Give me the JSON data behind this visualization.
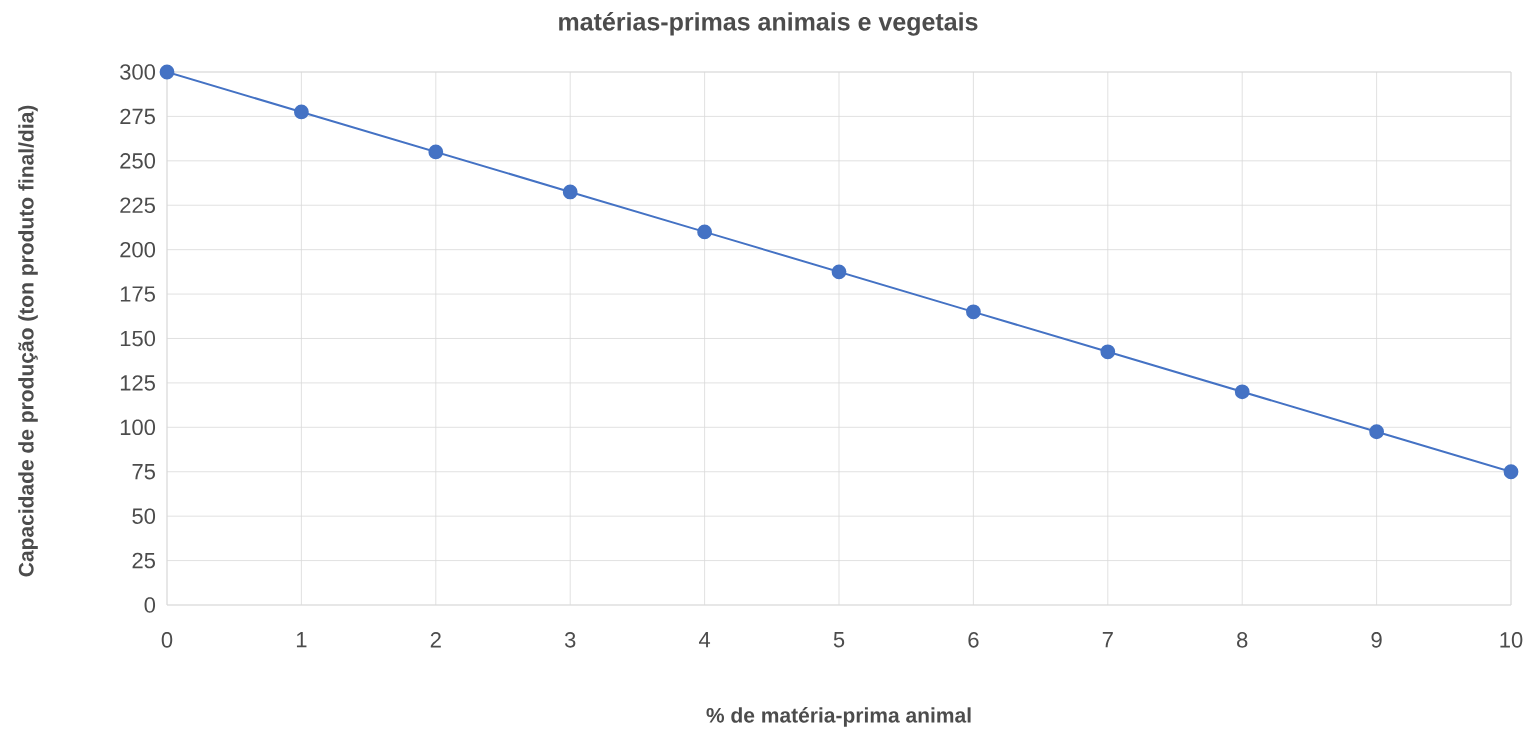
{
  "chart_data": {
    "type": "line",
    "title": "matérias-primas animais e vegetais",
    "xlabel": "% de matéria-prima animal",
    "ylabel": "Capacidade de produção (ton produto final/dia)",
    "x": [
      0,
      1,
      2,
      3,
      4,
      5,
      6,
      7,
      8,
      9,
      10
    ],
    "series": [
      {
        "color": "#4472c4",
        "values": [
          300,
          277.5,
          255,
          232.5,
          210,
          187.5,
          165,
          142.5,
          120,
          97.5,
          75
        ]
      }
    ],
    "xlim": [
      0,
      10
    ],
    "ylim": [
      0,
      300
    ],
    "xticks": [
      0,
      1,
      2,
      3,
      4,
      5,
      6,
      7,
      8,
      9,
      10
    ],
    "yticks": [
      0,
      25,
      50,
      75,
      100,
      125,
      150,
      175,
      200,
      225,
      250,
      275,
      300
    ],
    "grid": true,
    "marker": "circle",
    "line_style": "solid"
  }
}
